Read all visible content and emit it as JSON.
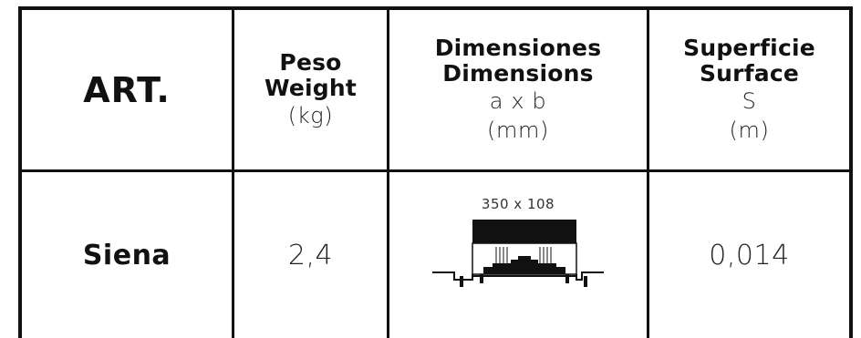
{
  "header": {
    "art": "ART.",
    "weight_es": "Peso",
    "weight_en": "Weight",
    "weight_unit": "(kg)",
    "dim_es": "Dimensiones",
    "dim_en": "Dimensions",
    "dim_formula": "a x b",
    "dim_unit": "(mm)",
    "surf_es": "Superficie",
    "surf_en": "Surface",
    "surf_symbol": "S",
    "surf_unit": "(m)"
  },
  "row": {
    "name": "Siena",
    "weight": "2,4",
    "dimensions": "350 x 108",
    "surface": "0,014",
    "drawing_icon": "grate-section-drawing-icon"
  }
}
